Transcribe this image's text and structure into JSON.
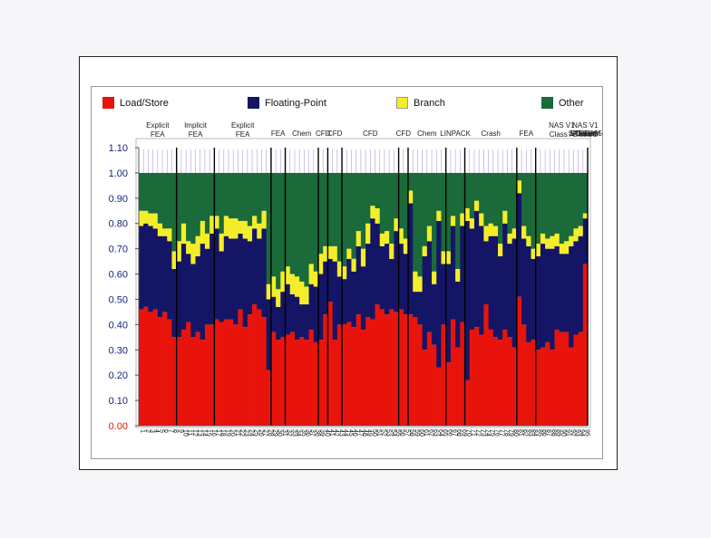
{
  "chart_data": {
    "type": "bar",
    "stacked": true,
    "yticks": [
      "0.00",
      "0.10",
      "0.20",
      "0.30",
      "0.40",
      "0.50",
      "0.60",
      "0.70",
      "0.80",
      "0.90",
      "1.00",
      "1.10"
    ],
    "ylim": [
      0,
      1.1
    ],
    "legend_position": "top",
    "group_labels": [
      "Explicit FEA",
      "Implicit FEA",
      "Explicit FEA",
      "FEA",
      "Chem",
      "CFD",
      "CFD",
      "CFD",
      "CFD",
      "Chem",
      "LINPACK",
      "Crash",
      "FEA",
      "NAS V1 Class A",
      "NAS V1 Class B",
      "Crash",
      "SPECfp95",
      "Ocean",
      "STREAM"
    ],
    "colors": {
      "load_store": "#e8140c",
      "floating_point": "#151566",
      "branch": "#f4ee2a",
      "other": "#1a6a3a"
    },
    "series": [
      {
        "name": "Load/Store",
        "values": [
          0.46,
          0.47,
          0.45,
          0.46,
          0.43,
          0.45,
          0.42,
          0.35,
          0.35,
          0.38,
          0.41,
          0.35,
          0.37,
          0.34,
          0.4,
          0.4,
          0.42,
          0.41,
          0.42,
          0.42,
          0.4,
          0.46,
          0.39,
          0.44,
          0.48,
          0.46,
          0.43,
          0.22,
          0.37,
          0.34,
          0.35,
          0.36,
          0.37,
          0.34,
          0.35,
          0.34,
          0.38,
          0.33,
          0.34,
          0.44,
          0.49,
          0.34,
          0.4,
          0.4,
          0.41,
          0.39,
          0.44,
          0.38,
          0.43,
          0.42,
          0.48,
          0.46,
          0.44,
          0.46,
          0.45,
          0.46,
          0.44,
          0.44,
          0.43,
          0.4,
          0.3,
          0.37,
          0.32,
          0.23,
          0.4,
          0.25,
          0.42,
          0.31,
          0.41,
          0.18,
          0.38,
          0.39,
          0.36,
          0.48,
          0.38,
          0.35,
          0.34,
          0.38,
          0.35,
          0.31,
          0.51,
          0.4,
          0.33,
          0.34,
          0.3,
          0.31,
          0.33,
          0.3,
          0.38,
          0.37,
          0.37,
          0.31,
          0.36,
          0.37,
          0.64
        ]
      },
      {
        "name": "Floating-Point",
        "values": [
          0.33,
          0.33,
          0.34,
          0.32,
          0.32,
          0.3,
          0.31,
          0.27,
          0.3,
          0.34,
          0.27,
          0.29,
          0.3,
          0.38,
          0.3,
          0.36,
          0.36,
          0.28,
          0.33,
          0.32,
          0.34,
          0.3,
          0.35,
          0.29,
          0.3,
          0.28,
          0.35,
          0.28,
          0.14,
          0.13,
          0.18,
          0.2,
          0.15,
          0.17,
          0.13,
          0.14,
          0.18,
          0.22,
          0.26,
          0.21,
          0.17,
          0.31,
          0.19,
          0.18,
          0.25,
          0.22,
          0.27,
          0.25,
          0.29,
          0.4,
          0.32,
          0.25,
          0.28,
          0.2,
          0.32,
          0.26,
          0.24,
          0.44,
          0.1,
          0.13,
          0.37,
          0.36,
          0.24,
          0.58,
          0.24,
          0.39,
          0.37,
          0.26,
          0.38,
          0.63,
          0.4,
          0.46,
          0.43,
          0.25,
          0.37,
          0.4,
          0.33,
          0.42,
          0.37,
          0.43,
          0.41,
          0.34,
          0.38,
          0.32,
          0.37,
          0.41,
          0.37,
          0.4,
          0.33,
          0.31,
          0.31,
          0.4,
          0.37,
          0.38,
          0.18
        ]
      },
      {
        "name": "Branch",
        "values": [
          0.06,
          0.05,
          0.05,
          0.06,
          0.05,
          0.03,
          0.05,
          0.07,
          0.08,
          0.08,
          0.05,
          0.08,
          0.08,
          0.09,
          0.06,
          0.07,
          0.05,
          0.07,
          0.08,
          0.08,
          0.08,
          0.05,
          0.07,
          0.06,
          0.05,
          0.06,
          0.07,
          0.06,
          0.08,
          0.07,
          0.08,
          0.07,
          0.08,
          0.08,
          0.09,
          0.07,
          0.08,
          0.06,
          0.08,
          0.06,
          0.05,
          0.06,
          0.06,
          0.05,
          0.04,
          0.05,
          0.06,
          0.07,
          0.08,
          0.05,
          0.06,
          0.05,
          0.05,
          0.06,
          0.05,
          0.06,
          0.06,
          0.05,
          0.08,
          0.06,
          0.04,
          0.06,
          0.05,
          0.04,
          0.05,
          0.05,
          0.04,
          0.05,
          0.05,
          0.05,
          0.04,
          0.04,
          0.05,
          0.06,
          0.05,
          0.04,
          0.05,
          0.05,
          0.04,
          0.04,
          0.05,
          0.05,
          0.04,
          0.04,
          0.05,
          0.04,
          0.04,
          0.05,
          0.05,
          0.04,
          0.05,
          0.04,
          0.05,
          0.04,
          0.02
        ]
      },
      {
        "name": "Other",
        "values": [
          0.15,
          0.15,
          0.16,
          0.16,
          0.2,
          0.22,
          0.22,
          0.31,
          0.27,
          0.2,
          0.27,
          0.28,
          0.25,
          0.19,
          0.24,
          0.17,
          0.17,
          0.24,
          0.17,
          0.18,
          0.18,
          0.19,
          0.19,
          0.21,
          0.17,
          0.2,
          0.15,
          0.44,
          0.41,
          0.46,
          0.39,
          0.37,
          0.4,
          0.41,
          0.43,
          0.45,
          0.36,
          0.39,
          0.32,
          0.29,
          0.29,
          0.29,
          0.35,
          0.37,
          0.3,
          0.34,
          0.23,
          0.3,
          0.2,
          0.13,
          0.14,
          0.24,
          0.23,
          0.28,
          0.18,
          0.22,
          0.26,
          0.07,
          0.39,
          0.41,
          0.29,
          0.21,
          0.39,
          0.15,
          0.31,
          0.31,
          0.17,
          0.38,
          0.16,
          0.14,
          0.18,
          0.11,
          0.16,
          0.21,
          0.2,
          0.21,
          0.28,
          0.15,
          0.24,
          0.22,
          0.03,
          0.21,
          0.25,
          0.3,
          0.28,
          0.24,
          0.26,
          0.25,
          0.24,
          0.28,
          0.27,
          0.25,
          0.22,
          0.21,
          0.16
        ]
      }
    ],
    "x_labels": [
      "1",
      "2",
      "3",
      "4",
      "5",
      "6",
      "7",
      "8",
      "9",
      "10",
      "11",
      "12",
      "13",
      "14",
      "15",
      "16",
      "17",
      "18",
      "19",
      "20",
      "21",
      "22",
      "23",
      "24",
      "25",
      "26",
      "27",
      "28",
      "29",
      "30",
      "31",
      "32",
      "33",
      "34",
      "35",
      "36",
      "37",
      "38",
      "39",
      "40",
      "41",
      "42",
      "43",
      "44",
      "45",
      "46",
      "47",
      "48",
      "49",
      "50",
      "51",
      "52",
      "53",
      "54",
      "55",
      "56",
      "57",
      "58",
      "59",
      "60",
      "61",
      "62",
      "63",
      "64",
      "65",
      "66",
      "67",
      "68",
      "69",
      "70",
      "71",
      "72",
      "73",
      "74",
      "75",
      "76",
      "77",
      "78",
      "79",
      "80",
      "81",
      "82",
      "83",
      "84",
      "85",
      "86",
      "87",
      "88",
      "89",
      "90",
      "91",
      "92",
      "93",
      "94",
      "95"
    ],
    "group_boundaries": [
      8,
      16,
      28,
      31,
      38,
      40,
      43,
      55,
      57,
      65,
      69,
      80,
      84,
      95
    ]
  }
}
